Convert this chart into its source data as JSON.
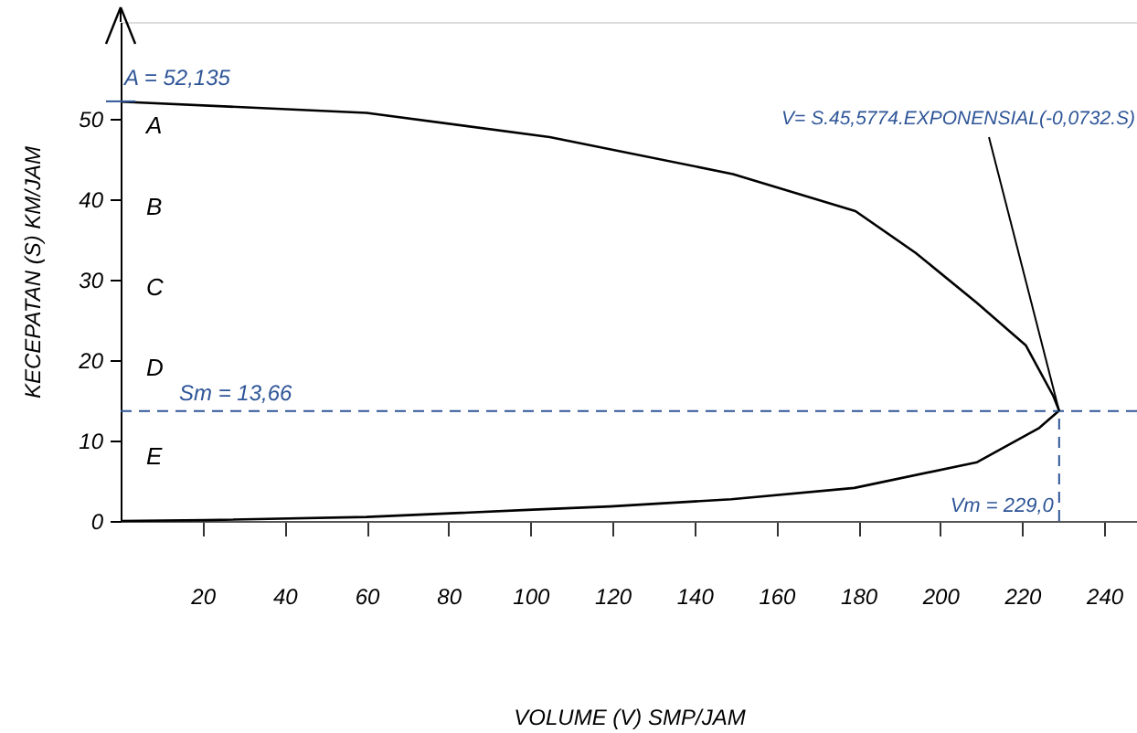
{
  "chart_data": {
    "type": "line",
    "xlabel": "VOLUME (V) SMP/JAM",
    "ylabel": "KECEPATAN (S) KM/JAM",
    "x": [
      0,
      60,
      104.7,
      149.4,
      179.3,
      194,
      208.9,
      220.9,
      227.6,
      229,
      224,
      209,
      179,
      149,
      119.4,
      100.6,
      60,
      20.6,
      0
    ],
    "series": [
      {
        "color": "#000000",
        "values": [
          52.1,
          50.7,
          47.7,
          43.1,
          38.5,
          33.3,
          27.1,
          21.8,
          15.5,
          13.7,
          11.5,
          7.3,
          4.1,
          2.7,
          1.8,
          1.4,
          0.5,
          0.1,
          0
        ]
      }
    ],
    "xlim": [
      0,
      248
    ],
    "ylim": [
      0,
      62
    ],
    "xticks": [
      20,
      40,
      60,
      80,
      100,
      120,
      140,
      160,
      180,
      200,
      220,
      240
    ],
    "yticks": [
      0,
      10,
      20,
      30,
      40,
      50
    ],
    "ref_lines": [
      {
        "axis": "y",
        "value": 13.66,
        "label": "Sm = 13,66",
        "color": "#2e5597",
        "line_style": "dashed"
      },
      {
        "axis": "x",
        "value": 229,
        "label": "Vm = 229,0",
        "color": "#2e5597",
        "line_style": "dashed"
      }
    ],
    "annotations": [
      {
        "text": "A = 52,135",
        "x": 0,
        "y": 52.135
      },
      "A",
      "B",
      "C",
      "D",
      "E",
      {
        "text": "V= S.45,5774.EXPONENSIAL(-0,0732.S)",
        "x": 229,
        "y": 13.66
      }
    ],
    "grid": false,
    "marker": "none",
    "line_style": "solid"
  }
}
